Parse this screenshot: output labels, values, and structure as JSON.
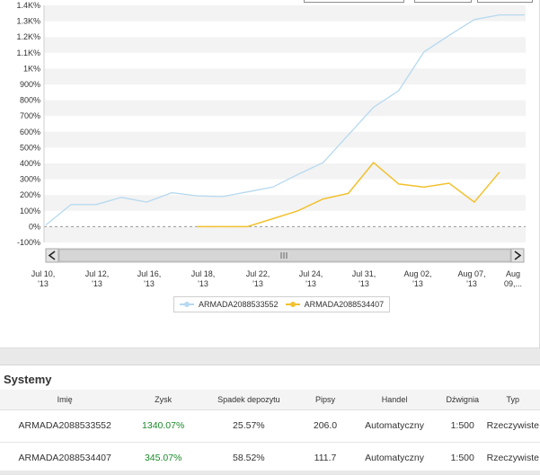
{
  "chart_data": {
    "type": "line",
    "y_ticks": [
      "1.4K%",
      "1.3K%",
      "1.2K%",
      "1.1K%",
      "1K%",
      "900%",
      "800%",
      "700%",
      "600%",
      "500%",
      "400%",
      "300%",
      "200%",
      "100%",
      "0%",
      "-100%"
    ],
    "y_values": [
      1400,
      1300,
      1200,
      1100,
      1000,
      900,
      800,
      700,
      600,
      500,
      400,
      300,
      200,
      100,
      0,
      -100
    ],
    "ylim": [
      -100,
      1400
    ],
    "x_ticks": [
      "Jul 10,\n'13",
      "Jul 12,\n'13",
      "Jul 16,\n'13",
      "Jul 18,\n'13",
      "Jul 22,\n'13",
      "Jul 24,\n'13",
      "Jul 31,\n'13",
      "Aug 02,\n'13",
      "Aug 07,\n'13",
      "Aug\n09,..."
    ],
    "grid": true,
    "legend_position": "bottom",
    "series": [
      {
        "name": "ARMADA2088533552",
        "color": "#b6d9f0",
        "x": [
          0,
          1,
          2,
          3,
          4,
          5,
          6,
          7,
          8,
          9,
          10,
          11,
          12,
          13,
          14,
          15,
          16,
          17,
          18,
          19
        ],
        "values": [
          10,
          140,
          140,
          185,
          155,
          215,
          195,
          190,
          220,
          250,
          330,
          405,
          580,
          755,
          860,
          1105,
          1210,
          1310,
          1340,
          1340
        ]
      },
      {
        "name": "ARMADA2088534407",
        "color": "#f2c12e",
        "x": [
          6,
          7,
          8,
          9,
          10,
          11,
          12,
          13,
          14,
          15,
          16,
          17,
          18
        ],
        "values": [
          0,
          0,
          0,
          50,
          100,
          175,
          210,
          405,
          270,
          250,
          275,
          155,
          345
        ]
      }
    ]
  },
  "systems": {
    "title": "Systemy",
    "columns": [
      "Imię",
      "Zysk",
      "Spadek depozytu",
      "Pipsy",
      "Handel",
      "Dźwignia",
      "Typ"
    ],
    "rows": [
      {
        "name": "ARMADA2088533552",
        "profit": "1340.07%",
        "drawdown": "25.57%",
        "pips": "206.0",
        "trading": "Automatyczny",
        "leverage": "1:500",
        "type": "Rzeczywiste"
      },
      {
        "name": "ARMADA2088534407",
        "profit": "345.07%",
        "drawdown": "58.52%",
        "pips": "111.7",
        "trading": "Automatyczny",
        "leverage": "1:500",
        "type": "Rzeczywiste"
      }
    ]
  },
  "colors": {
    "profit": "#1a8a2a",
    "plot_band": "#f3f3f3",
    "grid_line": "#d5d5d5"
  }
}
